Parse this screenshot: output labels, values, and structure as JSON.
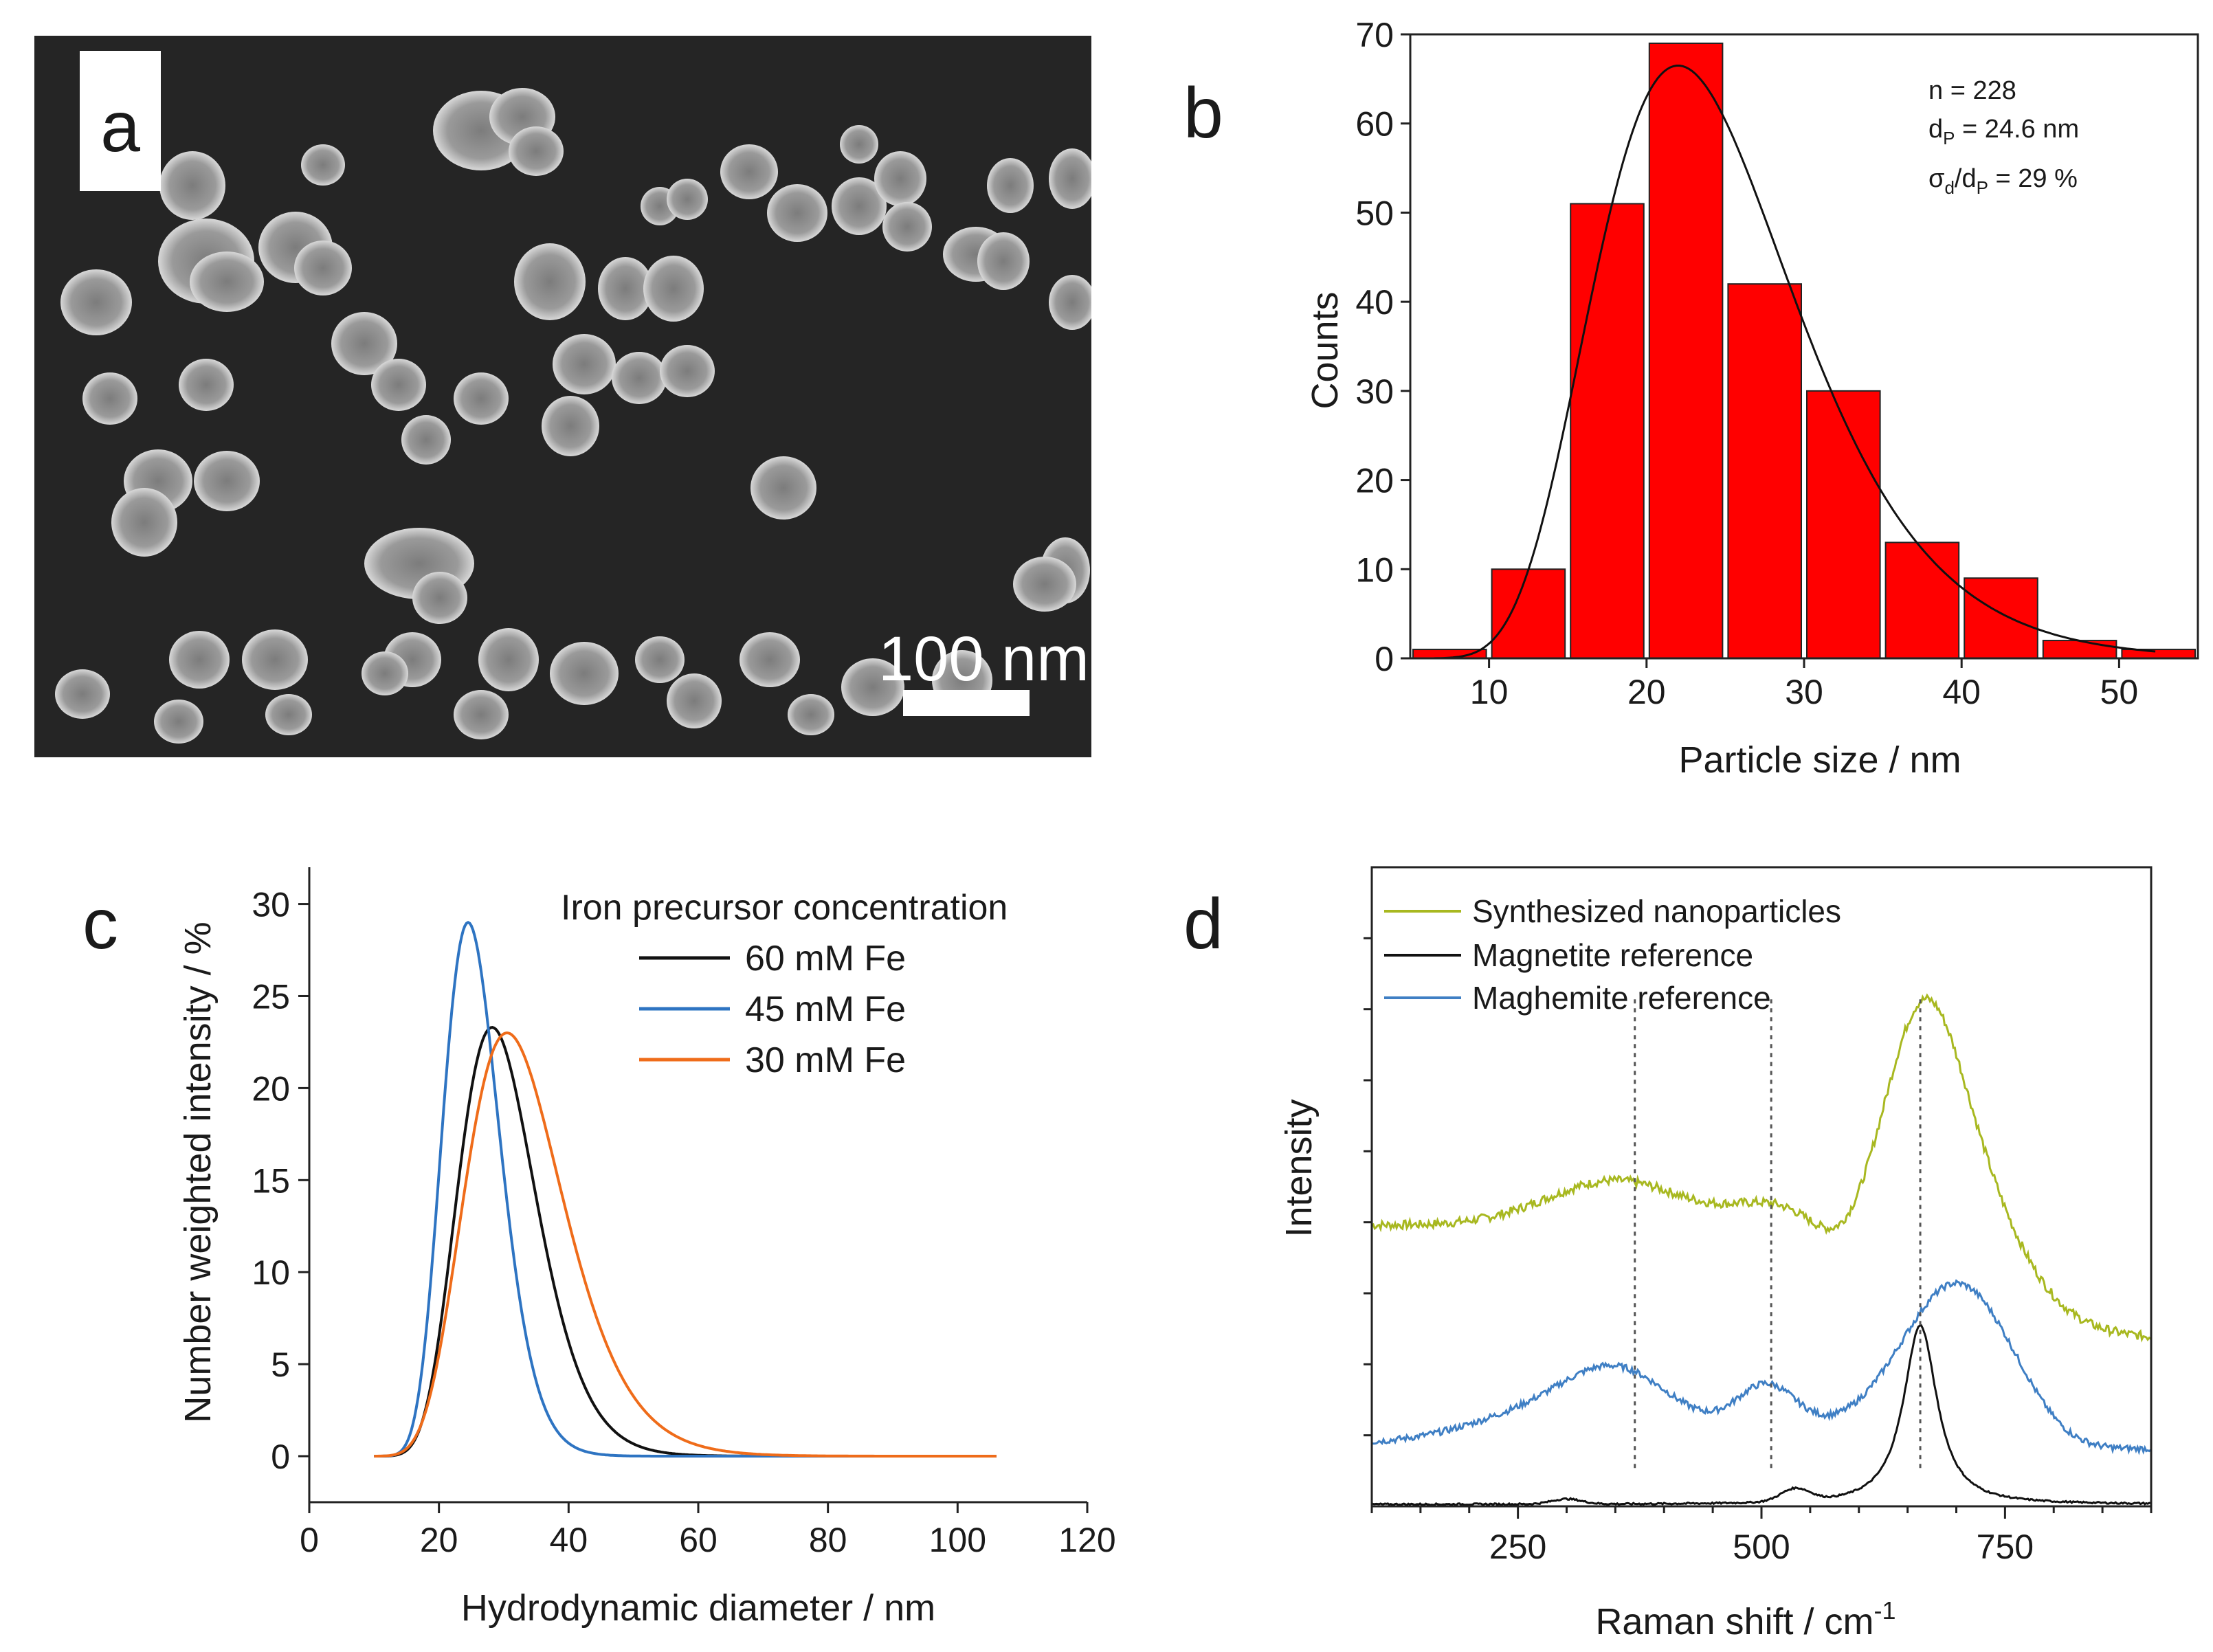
{
  "figure": {
    "panel_a": {
      "letter": "a",
      "scale_bar_label": "100 nm",
      "image_description_name": "sem-micrograph"
    }
  },
  "chart_data": [
    {
      "panel": "b",
      "type": "bar",
      "title": "",
      "xlabel": "Particle size / nm",
      "ylabel": "Counts",
      "xlim": [
        5,
        55
      ],
      "ylim": [
        0,
        70
      ],
      "xticks": [
        10,
        20,
        30,
        40,
        50
      ],
      "yticks": [
        0,
        10,
        20,
        30,
        40,
        50,
        60,
        70
      ],
      "bins": [
        {
          "center": 7.5,
          "value": 1
        },
        {
          "center": 12.5,
          "value": 10
        },
        {
          "center": 17.5,
          "value": 51
        },
        {
          "center": 22.5,
          "value": 69
        },
        {
          "center": 27.5,
          "value": 42
        },
        {
          "center": 32.5,
          "value": 30
        },
        {
          "center": 37.5,
          "value": 13
        },
        {
          "center": 42.5,
          "value": 9
        },
        {
          "center": 47.5,
          "value": 2
        },
        {
          "center": 52.5,
          "value": 1
        }
      ],
      "bin_width": 5,
      "bar_color": "#ff0000",
      "fit_curve": {
        "type": "lognormal",
        "peak": 66.5,
        "mode": 22,
        "sigma": 0.29,
        "x_range": [
          6.5,
          52.5
        ],
        "color": "#111111"
      },
      "annotations": {
        "n": "n = 228",
        "d_label": "d",
        "d_sub": "P",
        "d_value": " = 24.6 nm",
        "sigma_label": "σ",
        "sigma_sub": "d",
        "sigma_mid": "/d",
        "sigma_sub2": "P",
        "sigma_value": " = 29 %"
      }
    },
    {
      "panel": "c",
      "type": "line",
      "title": "",
      "xlabel": "Hydrodynamic diameter / nm",
      "ylabel": "Number weighted intensity / %",
      "xlim": [
        0,
        120
      ],
      "ylim": [
        -2.5,
        32
      ],
      "xticks": [
        0,
        20,
        40,
        60,
        80,
        100,
        120
      ],
      "yticks": [
        0,
        5,
        10,
        15,
        20,
        25,
        30
      ],
      "legend_title": "Iron precursor concentration",
      "series": [
        {
          "name": "60 mM Fe",
          "color": "#111111",
          "peak_x": 28.2,
          "peak_y": 23.3,
          "sigma": 0.215,
          "x_range": [
            10,
            106
          ]
        },
        {
          "name": "45 mM Fe",
          "color": "#2e74c2",
          "peak_x": 24.5,
          "peak_y": 29.0,
          "sigma": 0.18,
          "x_range": [
            10,
            106
          ]
        },
        {
          "name": "30 mM Fe",
          "color": "#ef6c1a",
          "peak_x": 30.5,
          "peak_y": 23.0,
          "sigma": 0.25,
          "x_range": [
            10,
            106
          ]
        }
      ]
    },
    {
      "panel": "d",
      "type": "line",
      "title": "",
      "xlabel": "Raman shift / cm",
      "xlabel_sup": "-1",
      "ylabel": "Intensity",
      "xlim": [
        100,
        900
      ],
      "ylim": [
        0,
        100
      ],
      "xticks": [
        250,
        500,
        750
      ],
      "reference_lines_x": [
        370,
        510,
        663
      ],
      "series": [
        {
          "name": "Synthesized nanoparticles",
          "color": "#a8b820"
        },
        {
          "name": "Magnetite reference",
          "color": "#111111"
        },
        {
          "name": "Maghemite reference",
          "color": "#3f7fc4"
        }
      ]
    }
  ]
}
